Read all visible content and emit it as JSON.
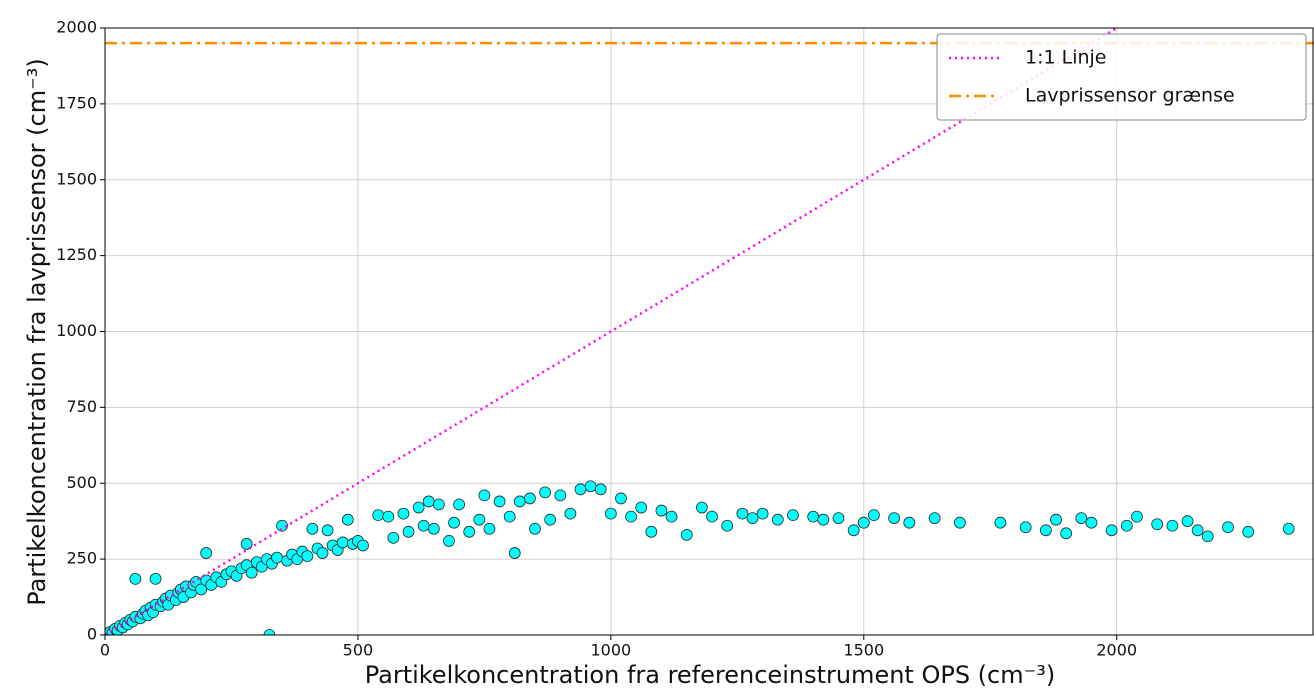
{
  "chart_data": {
    "type": "scatter",
    "xlabel": "Partikelkoncentration fra referenceinstrument OPS (cm⁻³)",
    "ylabel": "Partikelkoncentration fra lavprissensor (cm⁻³)",
    "xlim": [
      0,
      2390
    ],
    "ylim": [
      0,
      2000
    ],
    "xticks": [
      0,
      500,
      1000,
      1500,
      2000
    ],
    "yticks": [
      0,
      250,
      500,
      750,
      1000,
      1250,
      1500,
      1750,
      2000
    ],
    "grid": true,
    "legend": "upper right",
    "color": "#00ffff",
    "edgecolor": "#2a2a2a",
    "x": [
      5,
      10,
      15,
      20,
      25,
      30,
      35,
      40,
      45,
      50,
      55,
      60,
      60,
      70,
      75,
      80,
      85,
      90,
      95,
      100,
      100,
      110,
      115,
      120,
      125,
      130,
      140,
      145,
      150,
      155,
      160,
      170,
      175,
      180,
      190,
      200,
      200,
      210,
      220,
      230,
      240,
      250,
      260,
      270,
      280,
      280,
      290,
      300,
      310,
      320,
      325,
      330,
      340,
      350,
      360,
      370,
      380,
      390,
      400,
      410,
      420,
      430,
      440,
      450,
      460,
      470,
      480,
      490,
      500,
      510,
      540,
      560,
      570,
      590,
      600,
      620,
      630,
      640,
      650,
      660,
      680,
      690,
      700,
      720,
      740,
      750,
      760,
      780,
      800,
      810,
      820,
      840,
      850,
      870,
      880,
      900,
      920,
      940,
      960,
      980,
      1000,
      1020,
      1040,
      1060,
      1080,
      1100,
      1120,
      1150,
      1180,
      1200,
      1230,
      1260,
      1280,
      1300,
      1330,
      1360,
      1400,
      1420,
      1450,
      1480,
      1500,
      1520,
      1560,
      1590,
      1640,
      1690,
      1770,
      1820,
      1860,
      1880,
      1900,
      1930,
      1950,
      1990,
      2020,
      2040,
      2080,
      2110,
      2140,
      2160,
      2180,
      2220,
      2260,
      2340
    ],
    "values": [
      5,
      10,
      8,
      20,
      15,
      30,
      25,
      40,
      35,
      50,
      45,
      60,
      185,
      55,
      70,
      80,
      65,
      90,
      75,
      100,
      185,
      95,
      110,
      120,
      100,
      130,
      115,
      140,
      150,
      125,
      160,
      140,
      165,
      175,
      150,
      180,
      270,
      165,
      190,
      175,
      200,
      210,
      195,
      220,
      230,
      300,
      205,
      240,
      225,
      250,
      0,
      235,
      255,
      360,
      245,
      265,
      250,
      275,
      260,
      350,
      285,
      270,
      345,
      295,
      280,
      305,
      380,
      300,
      310,
      295,
      395,
      390,
      320,
      400,
      340,
      420,
      360,
      440,
      350,
      430,
      310,
      370,
      430,
      340,
      380,
      460,
      350,
      440,
      390,
      270,
      440,
      450,
      350,
      470,
      380,
      460,
      400,
      480,
      490,
      480,
      400,
      450,
      390,
      420,
      340,
      410,
      390,
      330,
      420,
      390,
      360,
      400,
      385,
      400,
      380,
      395,
      390,
      380,
      385,
      345,
      370,
      395,
      385,
      370,
      385,
      370,
      370,
      355,
      345,
      380,
      335,
      385,
      370,
      345,
      360,
      390,
      365,
      360,
      375,
      345,
      325,
      355,
      340,
      350
    ],
    "lines": [
      {
        "name": "1:1 Linje",
        "color": "#ff00ff",
        "style": "dotted",
        "x": [
          0,
          2000
        ],
        "values": [
          0,
          2000
        ]
      },
      {
        "name": "Lavprissensor grænse",
        "color": "#ff8c00",
        "style": "dashdot",
        "x": [
          0,
          2390
        ],
        "values": [
          1950,
          1950
        ]
      }
    ]
  }
}
